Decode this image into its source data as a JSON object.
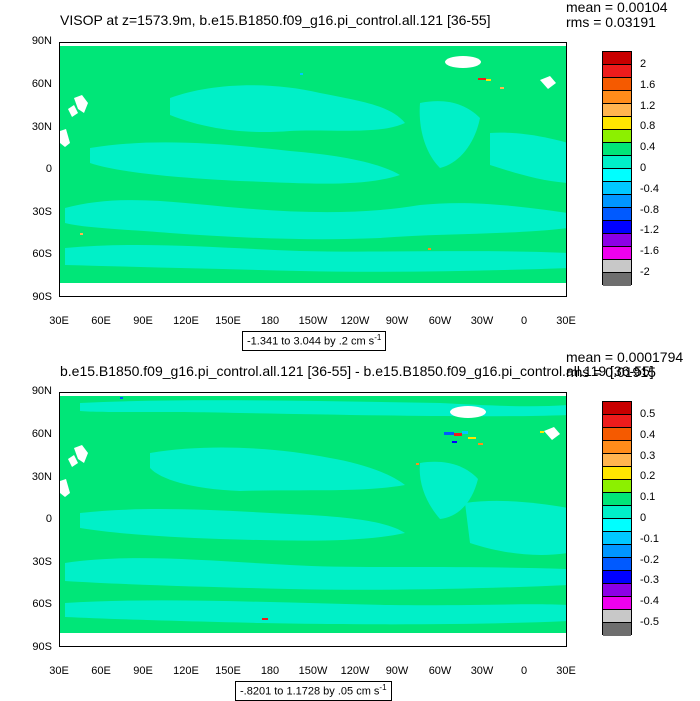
{
  "top": {
    "title": "VISOP at z=1573.9m, b.e15.B1850.f09_g16.pi_control.all.121 [36-55]",
    "mean": "mean = 0.00104",
    "rms": "rms = 0.03191",
    "range_text": "-1.341 to 3.044 by .2 cm s",
    "range_sup": "-1",
    "colorbar": {
      "labels": [
        "2",
        "1.6",
        "1.2",
        "0.8",
        "0.4",
        "0",
        "-0.4",
        "-0.8",
        "-1.2",
        "-1.6",
        "-2"
      ],
      "colors": [
        "#c80000",
        "#ee1c1c",
        "#f55a00",
        "#ff8c1a",
        "#ffb450",
        "#ffe600",
        "#8cf000",
        "#00e678",
        "#00f0c8",
        "#00ffff",
        "#00c8ff",
        "#0096ff",
        "#005aff",
        "#0000ff",
        "#8c00e6",
        "#ee00ee",
        "#c8c8c8",
        "#6e6e6e"
      ]
    }
  },
  "bottom": {
    "title": "b.e15.B1850.f09_g16.pi_control.all.121 [36-55] - b.e15.B1850.f09_g16.pi_control.all.119 [36-55]",
    "mean": "mean = 0.0001794",
    "rms": "rms = 0.01915",
    "range_text": "-.8201 to 1.1728 by .05 cm s",
    "range_sup": "-1",
    "colorbar": {
      "labels": [
        "0.5",
        "0.4",
        "0.3",
        "0.2",
        "0.1",
        "0",
        "-0.1",
        "-0.2",
        "-0.3",
        "-0.4",
        "-0.5"
      ],
      "colors": [
        "#c80000",
        "#ee1c1c",
        "#f55a00",
        "#ff8c1a",
        "#ffb450",
        "#ffe600",
        "#8cf000",
        "#00e678",
        "#00f0c8",
        "#00ffff",
        "#00c8ff",
        "#0096ff",
        "#005aff",
        "#0000ff",
        "#8c00e6",
        "#ee00ee",
        "#c8c8c8",
        "#6e6e6e"
      ]
    }
  },
  "axes": {
    "lat_labels": [
      "90N",
      "60N",
      "30N",
      "0",
      "30S",
      "60S",
      "90S"
    ],
    "lon_labels": [
      "30E",
      "60E",
      "90E",
      "120E",
      "150E",
      "180",
      "150W",
      "120W",
      "90W",
      "60W",
      "30W",
      "0",
      "30E"
    ]
  },
  "colors": {
    "ocean_main": "#00e678",
    "ocean_cool": "#00f0c8",
    "missing": "#ffffff"
  }
}
